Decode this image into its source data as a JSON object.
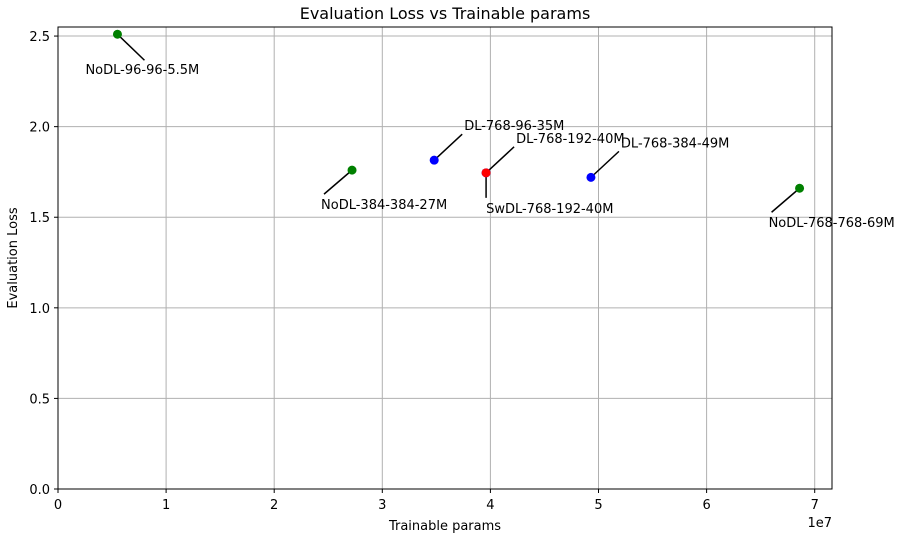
{
  "chart_data": {
    "type": "scatter",
    "title": "Evaluation Loss vs Trainable params",
    "xlabel": "Trainable params",
    "ylabel": "Evaluation Loss",
    "x_offset_label": "1e7",
    "xlim": [
      0,
      71600000
    ],
    "ylim": [
      0,
      2.55
    ],
    "xticks": [
      0,
      10000000,
      20000000,
      30000000,
      40000000,
      50000000,
      60000000,
      70000000
    ],
    "xtick_labels": [
      "0",
      "1",
      "2",
      "3",
      "4",
      "5",
      "6",
      "7"
    ],
    "yticks": [
      0,
      0.5,
      1.0,
      1.5,
      2.0,
      2.5
    ],
    "ytick_labels": [
      "0.0",
      "0.5",
      "1.0",
      "1.5",
      "2.0",
      "2.5"
    ],
    "grid": true,
    "colors": {
      "NoDL": "#008000",
      "DL": "#0000ff",
      "SwDL": "#ff0000",
      "grid": "#b0b0b0"
    },
    "points": [
      {
        "label": "NoDL-96-96-5.5M",
        "x": 5500000,
        "y": 2.51,
        "color": "#008000"
      },
      {
        "label": "NoDL-384-384-27M",
        "x": 27200000,
        "y": 1.76,
        "color": "#008000"
      },
      {
        "label": "DL-768-96-35M",
        "x": 34800000,
        "y": 1.815,
        "color": "#0000ff"
      },
      {
        "label": "DL-768-192-40M",
        "x": 39600000,
        "y": 1.745,
        "color": "#0000ff"
      },
      {
        "label": "SwDL-768-192-40M",
        "x": 39600000,
        "y": 1.745,
        "color": "#ff0000"
      },
      {
        "label": "DL-768-384-49M",
        "x": 49300000,
        "y": 1.72,
        "color": "#0000ff"
      },
      {
        "label": "NoDL-768-768-69M",
        "x": 68600000,
        "y": 1.66,
        "color": "#008000"
      }
    ]
  }
}
